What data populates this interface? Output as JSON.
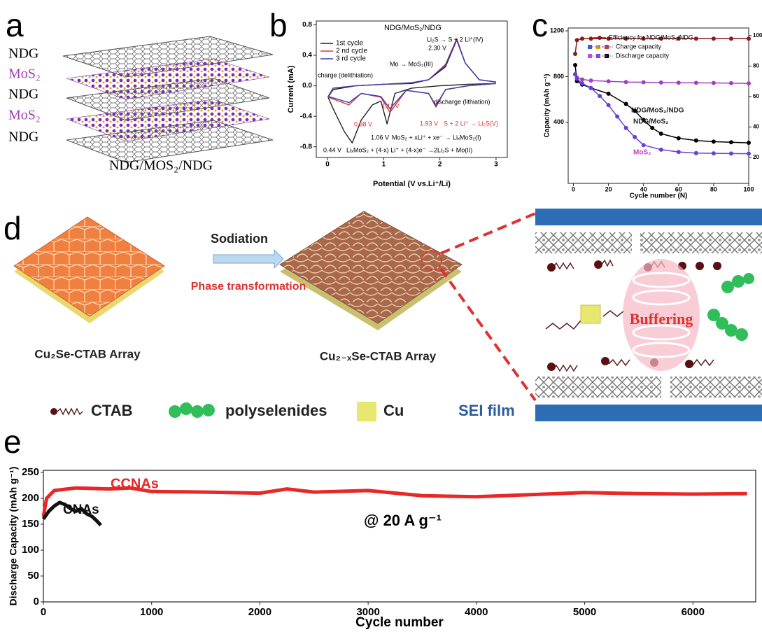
{
  "panels": {
    "a": {
      "label": "a",
      "layers": [
        "NDG",
        "MoS₂",
        "NDG",
        "MoS₂",
        "NDG"
      ],
      "caption": "NDG/MOS₂/NDG"
    },
    "d": {
      "label": "d",
      "arrow_top": "Sodiation",
      "arrow_bottom": "Phase transformation",
      "left_caption": "Cu₂Se-CTAB Array",
      "middle_caption": "Cu₂₋ₓSe-CTAB Array",
      "zoom_text": "Buffering",
      "legend": [
        "CTAB",
        "polyselenides",
        "Cu",
        "SEI film"
      ]
    }
  },
  "chart_data": [
    {
      "panel_label": "b",
      "type": "line",
      "title": "NDG/MoS₂/NDG",
      "x_label": "Potential (V vs.Li⁺/Li)",
      "y_label": "Current (mA)",
      "xlim": [
        -0.2,
        3.2
      ],
      "xticks": [
        0,
        1,
        2,
        3
      ],
      "ylim": [
        -0.94,
        0.85
      ],
      "yticks": [
        -0.8,
        -0.4,
        {
          "value": 0,
          "label": "0.0"
        },
        0.4,
        0.8
      ],
      "legend": "upper left",
      "series": [
        {
          "name": "1st cycle",
          "color": "#222222",
          "x": [
            3.0,
            2.5,
            2.0,
            1.5,
            1.2,
            1.06,
            0.95,
            0.8,
            0.6,
            0.44,
            0.3,
            0.1,
            0.01,
            0.1,
            0.5,
            1.0,
            1.5,
            1.8,
            2.1,
            2.3,
            2.45,
            2.7,
            3.0
          ],
          "values": [
            0.03,
            0.02,
            0.0,
            -0.03,
            -0.1,
            -0.5,
            -0.2,
            -0.25,
            -0.45,
            -0.75,
            -0.6,
            -0.3,
            -0.15,
            -0.05,
            0.0,
            0.02,
            0.03,
            0.08,
            0.25,
            0.6,
            0.3,
            0.08,
            0.05
          ]
        },
        {
          "name": "2 nd cycle",
          "color": "#e03131",
          "x": [
            3.0,
            2.5,
            2.1,
            1.93,
            1.8,
            1.4,
            1.11,
            0.95,
            0.6,
            0.38,
            0.2,
            0.01,
            0.1,
            0.5,
            1.0,
            1.5,
            1.8,
            2.1,
            2.3,
            2.45,
            2.7,
            3.0
          ],
          "values": [
            0.03,
            0.0,
            -0.05,
            -0.28,
            -0.1,
            -0.06,
            -0.35,
            -0.15,
            -0.1,
            -0.25,
            -0.2,
            -0.15,
            -0.03,
            0.0,
            0.02,
            0.04,
            0.08,
            0.28,
            0.62,
            0.3,
            0.08,
            0.05
          ]
        },
        {
          "name": "3 rd cycle",
          "color": "#3b3bb5",
          "x": [
            3.0,
            2.5,
            2.1,
            1.93,
            1.8,
            1.4,
            1.11,
            0.95,
            0.6,
            0.38,
            0.2,
            0.01,
            0.1,
            0.5,
            1.0,
            1.5,
            1.8,
            2.1,
            2.3,
            2.45,
            2.7,
            3.0
          ],
          "values": [
            0.03,
            0.0,
            -0.05,
            -0.26,
            -0.1,
            -0.06,
            -0.3,
            -0.14,
            -0.1,
            -0.22,
            -0.18,
            -0.14,
            -0.03,
            0.0,
            0.02,
            0.04,
            0.08,
            0.27,
            0.6,
            0.3,
            0.08,
            0.05
          ]
        }
      ],
      "annotations": [
        {
          "text": "Li₂S → S + 2 Li⁺(IV)",
          "color": "#000000"
        },
        {
          "text": "2.30 V",
          "color": "#000000"
        },
        {
          "text": "Mo → MoS₂(III)",
          "color": "#000000"
        },
        {
          "text": "charge (delithiation)",
          "color": "#000000"
        },
        {
          "text": "discharge (lithiation)",
          "color": "#000000"
        },
        {
          "text": "0.38 V",
          "color": "#e03131"
        },
        {
          "text": "1.11 V",
          "color": "#e03131"
        },
        {
          "text": "1.93 V",
          "color": "#e03131"
        },
        {
          "text": "S + 2 Li⁺ → Li₂S(V)",
          "color": "#e03131"
        },
        {
          "text": "1.06 V",
          "color": "#000000"
        },
        {
          "text": "MoS₂ + xLi⁺ + xe⁻ → LiₓMoS₂(I)",
          "color": "#000000"
        },
        {
          "text": "0.44 V",
          "color": "#000000"
        },
        {
          "text": "LiₓMoS₂ + (4-x) Li⁺ + (4-x)e⁻ →2Li₂S + Mo(II)",
          "color": "#000000"
        }
      ]
    },
    {
      "panel_label": "c",
      "type": "line",
      "x_label": "Cycle number (N)",
      "y_label": "Capacity (mAh g⁻¹)",
      "xlim": [
        -3,
        100
      ],
      "xticks": [
        0,
        20,
        40,
        60,
        80,
        100
      ],
      "ylim": [
        -135,
        1225
      ],
      "yticks": [
        400,
        800,
        1200
      ],
      "y2lim": [
        3,
        105
      ],
      "y2ticks": [
        20,
        40,
        60,
        80,
        100
      ],
      "series": [
        {
          "name": "Efficiency for NDG/MoS₂/NDG",
          "axis": "y2",
          "color": "#8b1a1a",
          "x": [
            1,
            2,
            5,
            10,
            20,
            30,
            40,
            50,
            60,
            70,
            80,
            90,
            100
          ],
          "values": [
            88,
            97,
            98,
            98,
            98,
            98,
            98,
            98,
            98,
            98,
            98,
            98,
            98
          ]
        },
        {
          "label": "NDG/MoS₂/NDG",
          "color": "#a040c0",
          "x": [
            1,
            2,
            5,
            10,
            20,
            30,
            40,
            50,
            60,
            70,
            80,
            90,
            100
          ],
          "values": [
            820,
            790,
            775,
            765,
            758,
            752,
            750,
            748,
            746,
            745,
            744,
            742,
            740
          ]
        },
        {
          "label": "NDG/MoS₂",
          "color": "#000000",
          "x": [
            1,
            2,
            5,
            10,
            20,
            30,
            35,
            40,
            45,
            50,
            60,
            70,
            80,
            90,
            100
          ],
          "values": [
            900,
            760,
            730,
            700,
            650,
            560,
            500,
            420,
            350,
            300,
            260,
            240,
            230,
            225,
            220
          ]
        },
        {
          "label": "MoS₂",
          "color": "#6a3fd6",
          "x": [
            1,
            2,
            5,
            10,
            15,
            20,
            25,
            30,
            35,
            40,
            50,
            60,
            70,
            80,
            90,
            100
          ],
          "values": [
            820,
            780,
            740,
            700,
            630,
            550,
            450,
            350,
            270,
            200,
            160,
            140,
            130,
            128,
            126,
            125
          ]
        }
      ],
      "legend_entries": [
        {
          "name": "Charge capacity",
          "colors": [
            "#3b5bdb",
            "#f59f00",
            "#e03131"
          ]
        },
        {
          "name": "Discharge capacity",
          "colors": [
            "#be4bdb",
            "#7048e8",
            "#000000"
          ]
        }
      ]
    },
    {
      "panel_label": "e",
      "type": "line",
      "x_label": "Cycle number",
      "y_label": "Discharge Capacity (mAh g⁻¹)",
      "xlim": [
        0,
        6580
      ],
      "xticks": [
        0,
        1000,
        2000,
        3000,
        4000,
        5000,
        6000
      ],
      "ylim": [
        0,
        254
      ],
      "yticks": [
        0,
        50,
        100,
        150,
        200,
        250
      ],
      "series": [
        {
          "label": "CCNAs",
          "color": "#e82727",
          "x": [
            0,
            30,
            100,
            300,
            600,
            800,
            1000,
            1500,
            2000,
            2250,
            2500,
            3000,
            3500,
            4000,
            4500,
            5000,
            5500,
            6000,
            6500
          ],
          "values": [
            165,
            200,
            215,
            220,
            218,
            220,
            213,
            212,
            210,
            218,
            212,
            215,
            205,
            203,
            207,
            211,
            209,
            208,
            209
          ]
        },
        {
          "label": "CNAs",
          "color": "#111111",
          "x": [
            0,
            50,
            100,
            150,
            200,
            250,
            300,
            350,
            400,
            450,
            500,
            530
          ],
          "values": [
            160,
            175,
            185,
            192,
            188,
            180,
            175,
            180,
            170,
            165,
            155,
            148
          ]
        }
      ],
      "annotations": [
        {
          "text": "@ 20 A g⁻¹",
          "color": "#000000"
        }
      ]
    }
  ]
}
